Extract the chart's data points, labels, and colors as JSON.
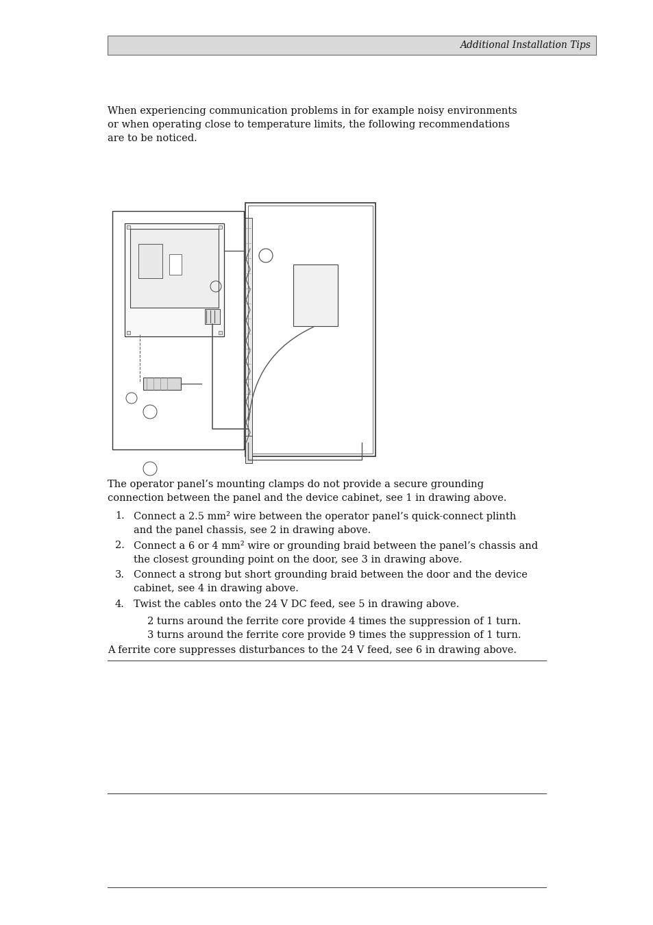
{
  "bg_color": "#ffffff",
  "header_bg": "#d9d9d9",
  "header_text": "Additional Installation Tips",
  "intro_text": "When experiencing communication problems in for example noisy environments\nor when operating close to temperature limits, the following recommendations\nare to be noticed.",
  "body_text": "The operator panel’s mounting clamps do not provide a secure grounding\nconnection between the panel and the device cabinet, see 1 in drawing above.",
  "ferrite_note": "A ferrite core suppresses disturbances to the 24 V feed, see 6 in drawing above.",
  "font_size": 10.5,
  "header_font_size": 10.0,
  "list_numbers": [
    "1.",
    "2.",
    "3.",
    "4."
  ],
  "list_texts": [
    "Connect a 2.5 mm² wire between the operator panel’s quick-connect plinth\nand the panel chassis, see 2 in drawing above.",
    "Connect a 6 or 4 mm² wire or grounding braid between the panel’s chassis and\nthe closest grounding point on the door, see 3 in drawing above.",
    "Connect a strong but short grounding braid between the door and the device\ncabinet, see 4 in drawing above.",
    "Twist the cables onto the 24 V DC feed, see 5 in drawing above."
  ],
  "sub_items": [
    "2 turns around the ferrite core provide 4 times the suppression of 1 turn.",
    "3 turns around the ferrite core provide 9 times the suppression of 1 turn."
  ]
}
